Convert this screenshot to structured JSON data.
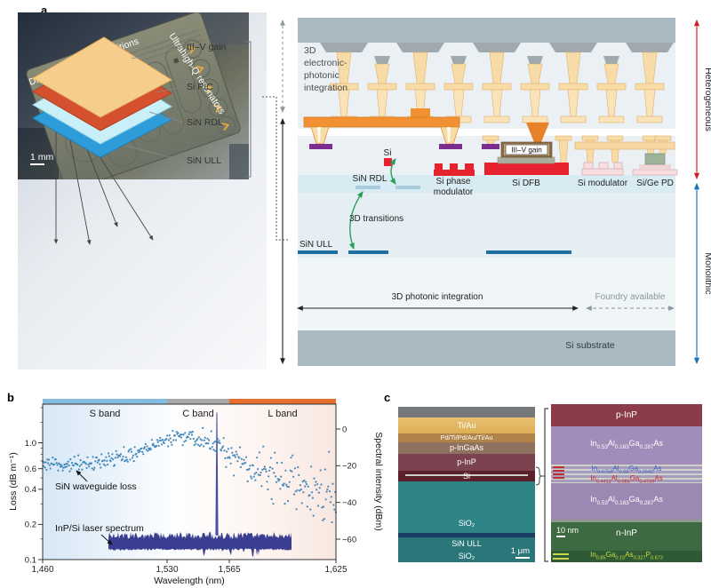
{
  "figure": {
    "panel_labels": {
      "a": "a",
      "b": "b",
      "c": "c"
    }
  },
  "panel_a": {
    "stack": {
      "layers": [
        {
          "label": "III–V gain",
          "color": "#F6CE8C"
        },
        {
          "label": "Si PIC",
          "color": "#D4502E"
        },
        {
          "label": "SiN RDL",
          "color": "#C9EFF8"
        },
        {
          "label": "SiN ULL",
          "color": "#2D9CD8"
        }
      ]
    },
    "photo": {
      "dfb": "DFB lasers",
      "transitions": "3D transitions",
      "resonators": "Ultrahigh-Q resonators",
      "scale_bar": "1 mm"
    },
    "schematic": {
      "caption_lines": [
        "3D",
        "electronic-",
        "photonic",
        "integration"
      ],
      "si": "Si",
      "sin_rdl": "SiN RDL",
      "si_phase_line1": "Si phase",
      "si_phase_line2": "modulator",
      "iii_v_gain": "III–V gain",
      "si_dfb": "Si DFB",
      "si_modulator": "Si modulator",
      "si_ge_pd": "Si/Ge PD",
      "transitions": "3D transitions",
      "sin_ull": "SiN ULL",
      "photonic_integration": "3D photonic integration",
      "foundry": "Foundry available",
      "substrate": "Si substrate",
      "heterogeneous": "Heterogeneous",
      "monolithic": "Monolithic",
      "colors": {
        "heterogeneous_arrow": "#D62027",
        "monolithic_arrow": "#1B75BB"
      }
    }
  },
  "chart_data": {
    "type": "scatter",
    "xlabel": "Wavelength (nm)",
    "ylabel_left": "Loss (dB m⁻¹)",
    "ylabel_right": "Spectral intensity (dBm)",
    "xlim": [
      1460,
      1625
    ],
    "x_ticks": [
      1460,
      1530,
      1565,
      1625
    ],
    "x_tick_labels": [
      "1,460",
      "1,530",
      "1,565",
      "1,625"
    ],
    "y_scale_left": "log",
    "ylim_left": [
      0.1,
      2.15
    ],
    "y_ticks_left": [
      0.1,
      0.2,
      0.4,
      0.6,
      1.0
    ],
    "y_tick_labels_left": [
      "0.1",
      "0.2",
      "0.4",
      "0.6",
      "1.0"
    ],
    "y_minor_ticks_left": [
      0.15,
      0.3,
      0.5,
      0.7,
      0.8,
      0.9,
      1.5,
      2.0
    ],
    "ylim_right": [
      13.5,
      -71
    ],
    "y_ticks_right": [
      0,
      -20,
      -40,
      -60
    ],
    "y_tick_labels_right": [
      "0",
      "−20",
      "−40",
      "−60"
    ],
    "grid": false,
    "bands": [
      {
        "label": "S band",
        "range_nm": [
          1460,
          1530
        ],
        "color": "#85BCE2"
      },
      {
        "label": "C band",
        "range_nm": [
          1530,
          1565
        ],
        "color": "#A9A9A9"
      },
      {
        "label": "L band",
        "range_nm": [
          1565,
          1625
        ],
        "color": "#E76F2E"
      }
    ],
    "series": [
      {
        "name": "SiN waveguide loss",
        "type": "scatter",
        "color": "#2F7CB4",
        "n_points": 380,
        "trend": [
          [
            1460,
            0.68
          ],
          [
            1470,
            0.64
          ],
          [
            1480,
            0.66
          ],
          [
            1490,
            0.68
          ],
          [
            1500,
            0.72
          ],
          [
            1510,
            0.8
          ],
          [
            1520,
            0.93
          ],
          [
            1530,
            1.05
          ],
          [
            1537,
            1.12
          ],
          [
            1545,
            1.1
          ],
          [
            1552,
            1.02
          ],
          [
            1560,
            0.9
          ],
          [
            1565,
            0.82
          ],
          [
            1575,
            0.66
          ],
          [
            1585,
            0.56
          ],
          [
            1595,
            0.49
          ],
          [
            1605,
            0.43
          ],
          [
            1615,
            0.38
          ],
          [
            1625,
            0.35
          ]
        ]
      },
      {
        "name": "InP/Si laser spectrum",
        "type": "spectrum",
        "color": "#3A3E90",
        "range_nm": [
          1497,
          1600
        ],
        "floor_dBm": -62,
        "peak_nm": 1558,
        "peak_dBm": 9
      }
    ],
    "annotations": {
      "scatter": "SiN waveguide loss",
      "spectrum": "InP/Si laser spectrum"
    }
  },
  "panel_c": {
    "sem": {
      "layers": [
        "Ti/Au",
        "Pd/Ti/Pd/Au/Ti/Au",
        "p-InGaAs",
        "p-InP",
        "Si",
        "SiO₂",
        "SiN ULL",
        "SiO₂"
      ],
      "scale_bar": "1 μm"
    },
    "tem": {
      "p_inp": "p-InP",
      "n_inp": "n-InP",
      "scale_bar": "10 nm",
      "f1": [
        [
          "In",
          "0.53"
        ],
        [
          "Al",
          "0.183"
        ],
        [
          "Ga",
          "0.287"
        ],
        [
          "As",
          ""
        ]
      ],
      "f2": [
        [
          "In",
          "0.6758"
        ],
        [
          "Al",
          "0.08"
        ],
        [
          "Ga",
          "0.2642"
        ],
        [
          "As",
          ""
        ]
      ],
      "f3": [
        [
          "In",
          "0.4411"
        ],
        [
          "Al",
          "0.085"
        ],
        [
          "Ga",
          "0.4739"
        ],
        [
          "As",
          ""
        ]
      ],
      "f4": [
        [
          "In",
          "0.53"
        ],
        [
          "Al",
          "0.183"
        ],
        [
          "Ga",
          "0.287"
        ],
        [
          "As",
          ""
        ]
      ],
      "f5": [
        [
          "In",
          "0.85"
        ],
        [
          "Ga",
          "0.15"
        ],
        [
          "As",
          "0.327"
        ],
        [
          "P",
          "0.673"
        ]
      ]
    }
  }
}
